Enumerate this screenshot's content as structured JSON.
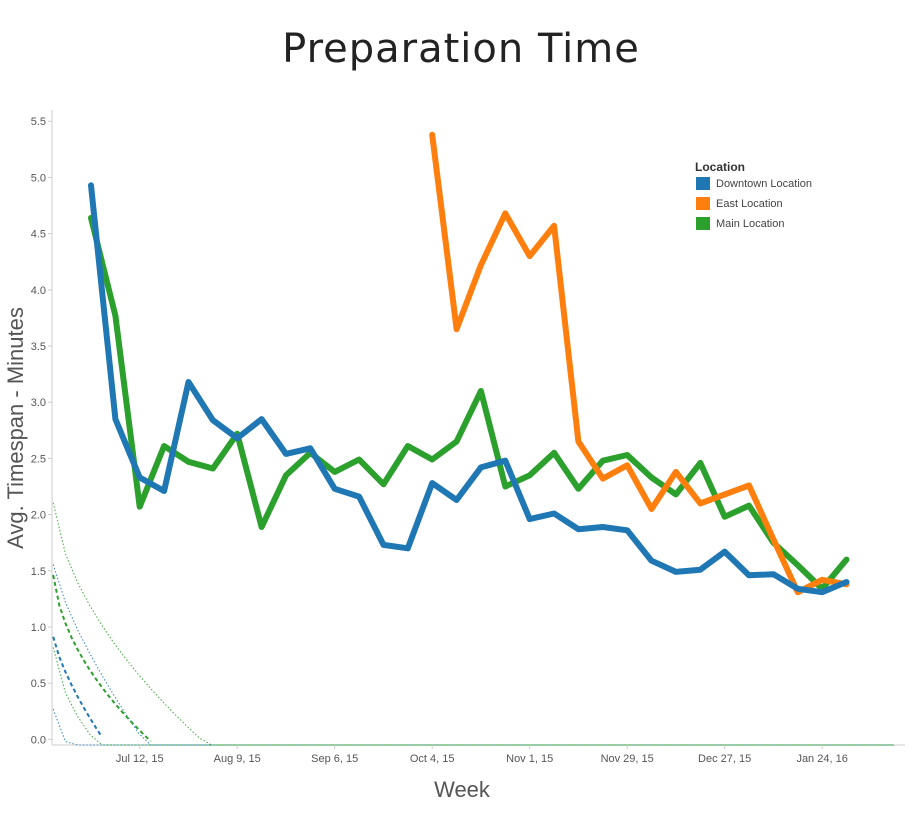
{
  "chart_data": {
    "type": "line",
    "title": "Preparation Time",
    "xlabel": "Week",
    "ylabel": "Avg. Timespan - Minutes",
    "x_tick_labels": [
      "Jul 12, 15",
      "Aug 9, 15",
      "Sep 6, 15",
      "Oct 4, 15",
      "Nov 1, 15",
      "Nov 29, 15",
      "Dec 27, 15",
      "Jan 24, 16"
    ],
    "x_tick_week_index": [
      2,
      6,
      10,
      14,
      18,
      22,
      26,
      30
    ],
    "week_range": [
      -1.6,
      33.4
    ],
    "ylim": [
      -0.05,
      5.6
    ],
    "y_ticks": [
      "0.0",
      "0.5",
      "1.0",
      "1.5",
      "2.0",
      "2.5",
      "3.0",
      "3.5",
      "4.0",
      "4.5",
      "5.0",
      "5.5"
    ],
    "legend": {
      "title": "Location",
      "position": "top-right"
    },
    "series": [
      {
        "name": "Downtown Location",
        "color": "#1f77b4",
        "start_week": 0,
        "values": [
          4.93,
          2.85,
          2.33,
          2.21,
          3.18,
          2.84,
          2.68,
          2.85,
          2.54,
          2.59,
          2.23,
          2.16,
          1.73,
          1.7,
          2.28,
          2.13,
          2.42,
          2.48,
          1.96,
          2.01,
          1.87,
          1.89,
          1.86,
          1.59,
          1.49,
          1.51,
          1.67,
          1.46,
          1.47,
          1.34,
          1.31,
          1.4
        ],
        "trend": {
          "a": -0.5834,
          "b": 0.9845,
          "p": 0.7
        },
        "band": {
          "color": "#1f77b4"
        }
      },
      {
        "name": "East Location",
        "color": "#ff7f0e",
        "start_week": 14,
        "values": [
          5.38,
          3.65,
          4.22,
          4.68,
          4.3,
          4.57,
          2.65,
          2.32,
          2.44,
          2.05,
          2.38,
          2.1,
          2.18,
          2.26,
          1.78,
          1.31,
          1.42,
          1.38
        ],
        "trend": {
          "a": 11.0,
          "b": -8.9,
          "p": 0.12
        }
      },
      {
        "name": "Main Location",
        "color": "#2ca02c",
        "start_week": 0,
        "values": [
          4.64,
          3.77,
          2.07,
          2.61,
          2.47,
          2.41,
          2.72,
          1.89,
          2.35,
          2.55,
          2.38,
          2.49,
          2.27,
          2.61,
          2.49,
          2.65,
          3.1,
          2.25,
          2.35,
          2.55,
          2.23,
          2.48,
          2.53,
          2.33,
          2.18,
          2.46,
          1.98,
          2.08,
          1.75,
          1.55,
          1.34,
          1.6
        ],
        "trend": {
          "a": -0.8265,
          "b": 1.6467,
          "p": 0.5
        },
        "band": {
          "color": "#2ca02c"
        }
      }
    ]
  }
}
